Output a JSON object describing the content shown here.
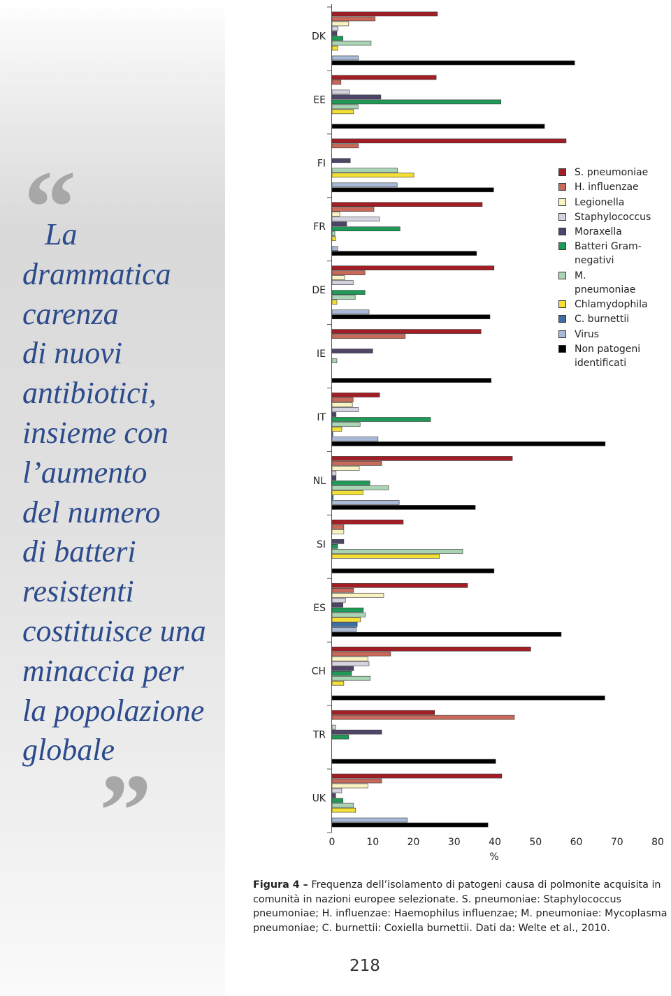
{
  "quote": {
    "open": "“",
    "close": "”",
    "lines": [
      "La",
      "drammatica",
      "carenza",
      "di nuovi",
      "antibiotici,",
      "insieme con",
      "l’aumento",
      "del numero",
      "di batteri",
      "resistenti",
      "costituisce una",
      "minaccia per",
      "la popolazione",
      "globale"
    ]
  },
  "chart_data": {
    "type": "bar",
    "orientation": "horizontal",
    "categories": [
      "DK",
      "EE",
      "FI",
      "FR",
      "DE",
      "IE",
      "IT",
      "NL",
      "SI",
      "ES",
      "CH",
      "TR",
      "UK"
    ],
    "series": [
      {
        "name": "S. pneumoniae",
        "color": "#a31d24",
        "values": [
          25.9,
          25.6,
          57.5,
          36.9,
          39.8,
          36.6,
          11.7,
          44.3,
          17.5,
          33.3,
          48.8,
          25.2,
          41.7
        ]
      },
      {
        "name": "H. influenzae",
        "color": "#c8695a",
        "values": [
          10.6,
          2.2,
          6.5,
          10.3,
          8.1,
          18.0,
          5.2,
          12.2,
          2.9,
          5.3,
          14.4,
          44.8,
          12.2
        ]
      },
      {
        "name": "Legionella",
        "color": "#fbf3c2",
        "values": [
          4.1,
          null,
          null,
          1.9,
          3.1,
          null,
          5.0,
          6.7,
          2.9,
          12.7,
          8.8,
          null,
          8.8
        ]
      },
      {
        "name": "Staphylococcus",
        "color": "#d5d3df",
        "values": [
          1.5,
          4.3,
          null,
          11.7,
          5.2,
          null,
          6.5,
          1.0,
          null,
          3.3,
          9.1,
          0.9,
          2.4
        ]
      },
      {
        "name": "Moraxella",
        "color": "#4f4568",
        "values": [
          1.2,
          12.0,
          4.5,
          3.6,
          null,
          10.0,
          1.0,
          1.0,
          2.9,
          2.7,
          5.3,
          12.2,
          0.9
        ]
      },
      {
        "name": "Batteri Gram-negativi",
        "color": "#1f9a57",
        "values": [
          2.7,
          41.5,
          null,
          16.7,
          8.1,
          null,
          24.2,
          9.3,
          1.4,
          7.7,
          4.8,
          4.1,
          2.7
        ]
      },
      {
        "name": "M. pneumoniae",
        "color": "#a9d5b5",
        "values": [
          9.6,
          6.4,
          16.1,
          0.7,
          5.7,
          1.2,
          6.9,
          13.9,
          32.1,
          8.2,
          9.4,
          null,
          5.3
        ]
      },
      {
        "name": "Chlamydophila",
        "color": "#f3df35",
        "values": [
          1.4,
          5.3,
          20.1,
          0.9,
          1.2,
          null,
          2.4,
          7.6,
          26.4,
          7.0,
          2.9,
          null,
          5.8
        ]
      },
      {
        "name": "C. burnettii",
        "color": "#3b6fa6",
        "values": [
          null,
          null,
          null,
          null,
          null,
          null,
          0.2,
          0.3,
          null,
          6.2,
          null,
          null,
          null
        ]
      },
      {
        "name": "Virus",
        "color": "#a8bad7",
        "values": [
          6.5,
          null,
          16.0,
          1.4,
          9.1,
          null,
          11.3,
          16.5,
          null,
          6.0,
          null,
          null,
          18.5
        ]
      },
      {
        "name": "Non patogeni identificati",
        "color": "#000000",
        "values": [
          59.6,
          52.2,
          39.7,
          35.5,
          38.8,
          39.1,
          67.1,
          35.2,
          39.8,
          56.3,
          67.0,
          40.2,
          38.3
        ]
      }
    ],
    "xlim": [
      0,
      80
    ],
    "xticks": [
      0,
      10,
      20,
      30,
      40,
      50,
      60,
      70,
      80
    ],
    "xlabel": "%",
    "legend": "right"
  },
  "caption": {
    "label": "Figura 4 –",
    "text": "Frequenza dell’isolamento di patogeni causa di polmonite acquisita in comunità in nazioni europee selezionate. S. pneumoniae: Staphylococcus pneumoniae; H. influenzae: Haemophilus influenzae; M. pneumoniae: Mycoplasma pneumoniae; C. burnettii: Coxiella burnettii. Dati da: Welte et al., 2010."
  },
  "page_number": "218"
}
